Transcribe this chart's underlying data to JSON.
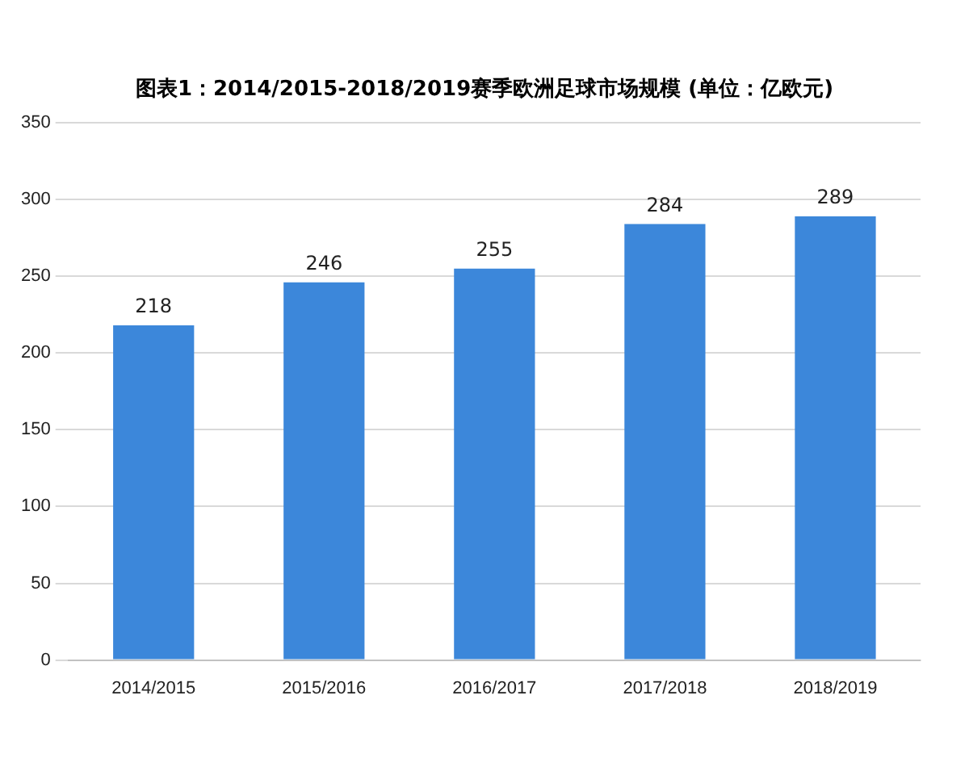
{
  "chart_data": {
    "type": "bar",
    "title": "图表1：2014/2015-2018/2019赛季欧洲足球市场规模 (单位：亿欧元)",
    "categories": [
      "2014/2015",
      "2015/2016",
      "2016/2017",
      "2017/2018",
      "2018/2019"
    ],
    "values": [
      218,
      246,
      255,
      284,
      289
    ],
    "color": "#3c87da",
    "ylim": [
      0,
      350
    ],
    "yticks": [
      0,
      50,
      100,
      150,
      200,
      250,
      300,
      350
    ],
    "grid": "y",
    "data_labels": true
  }
}
